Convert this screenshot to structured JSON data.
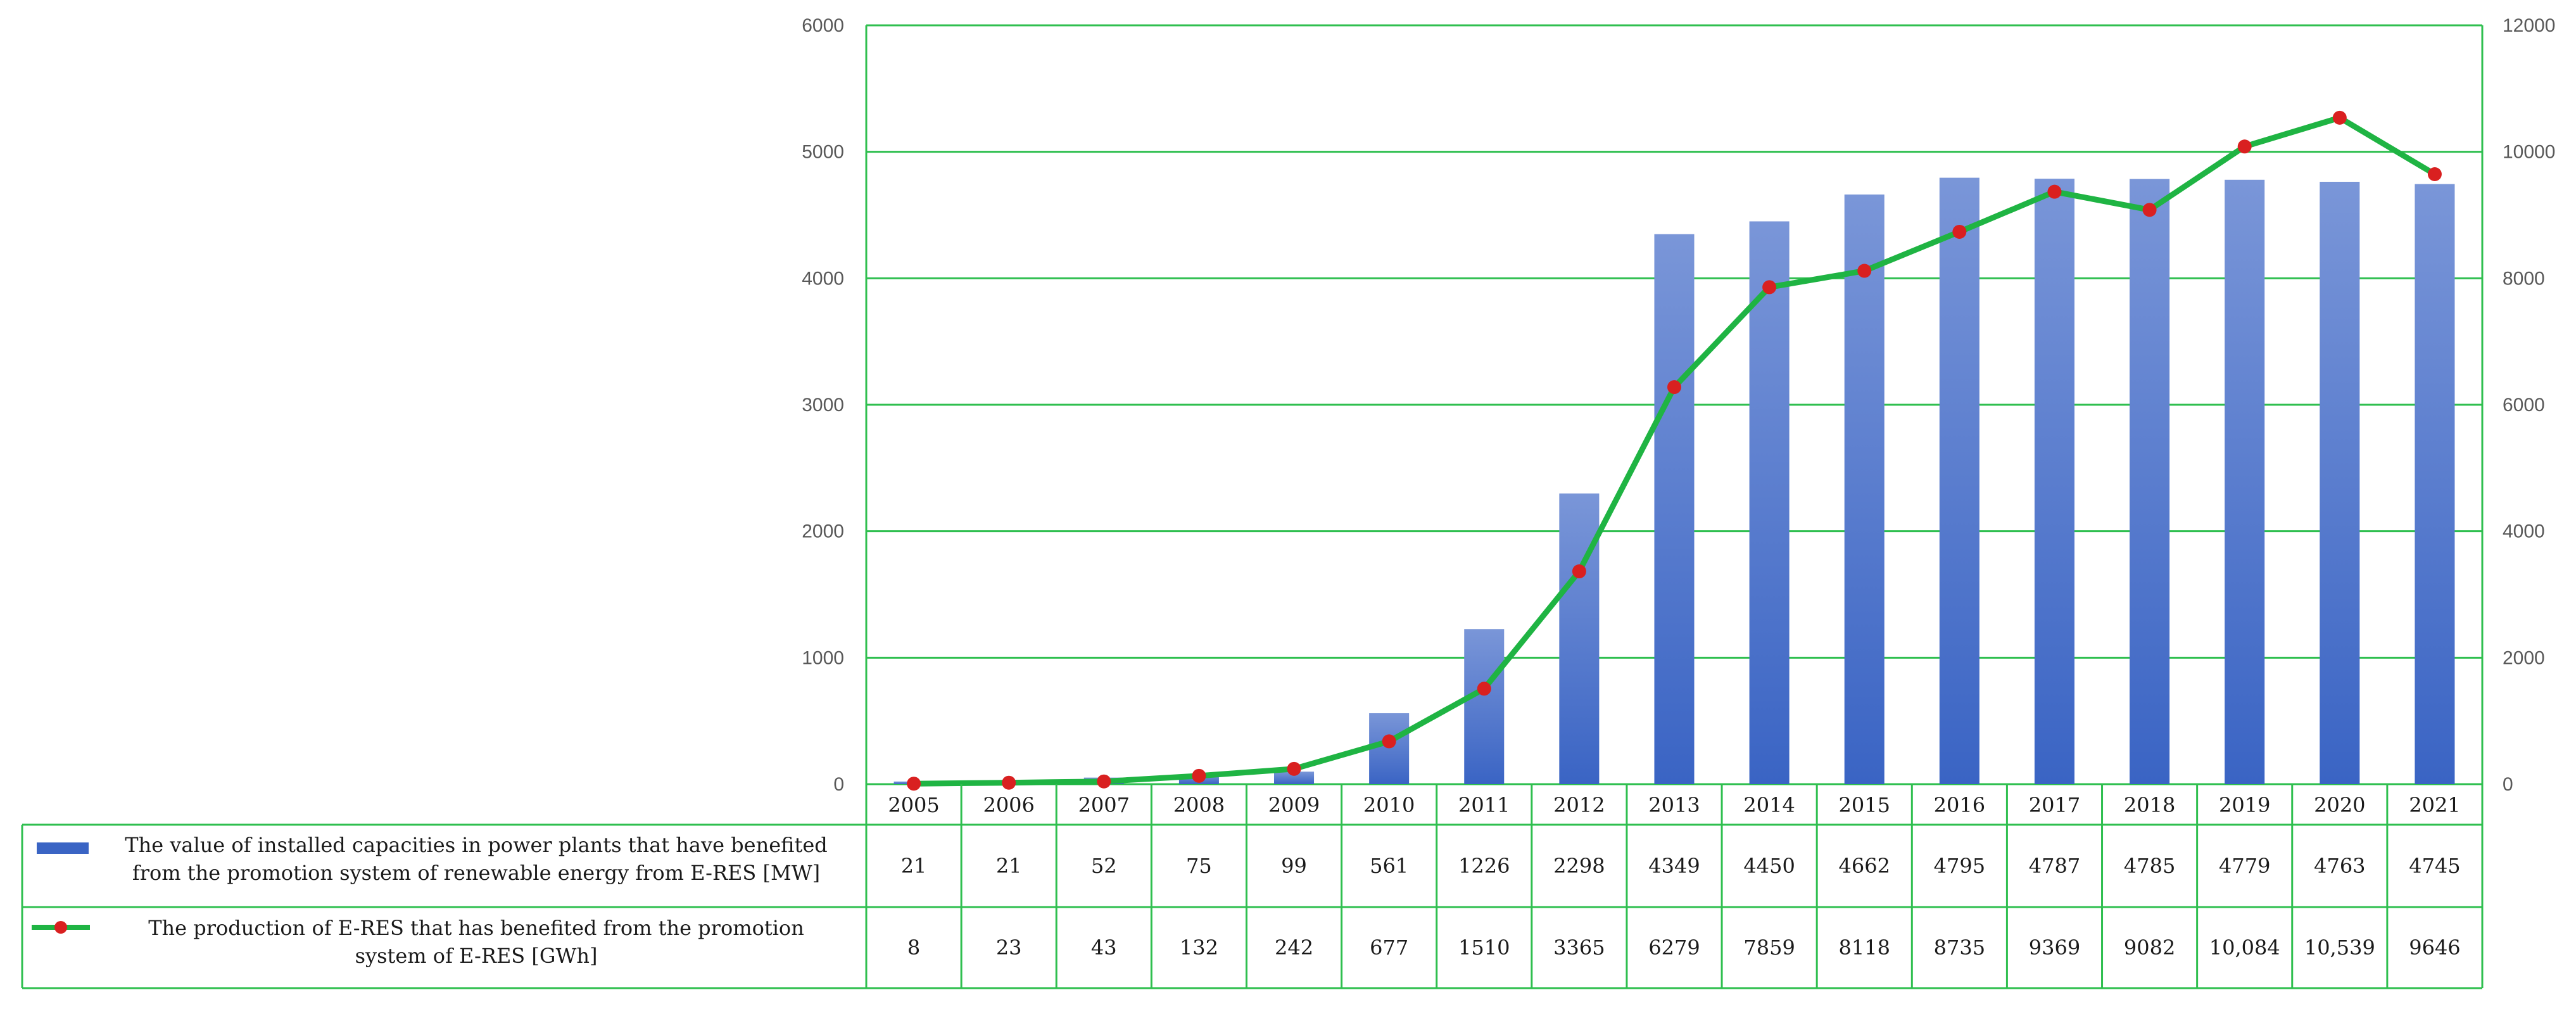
{
  "chart_data": {
    "type": "bar",
    "categories": [
      "2005",
      "2006",
      "2007",
      "2008",
      "2009",
      "2010",
      "2011",
      "2012",
      "2013",
      "2014",
      "2015",
      "2016",
      "2017",
      "2018",
      "2019",
      "2020",
      "2021"
    ],
    "series": [
      {
        "name_lines": [
          "The value of installed capacities in power plants that have benefited",
          "from the promotion system of renewable energy from E-RES [MW]"
        ],
        "type": "bar",
        "axis": "left",
        "values": [
          21,
          21,
          52,
          75,
          99,
          561,
          1226,
          2298,
          4349,
          4450,
          4662,
          4795,
          4787,
          4785,
          4779,
          4763,
          4745
        ],
        "value_labels": [
          "21",
          "21",
          "52",
          "75",
          "99",
          "561",
          "1226",
          "2298",
          "4349",
          "4450",
          "4662",
          "4795",
          "4787",
          "4785",
          "4779",
          "4763",
          "4745"
        ],
        "color_top": "#7a96d8",
        "color_bottom": "#3a64c4"
      },
      {
        "name_lines": [
          "The production of E-RES that has benefited from the promotion",
          "system of E-RES [GWh]"
        ],
        "type": "line",
        "axis": "right",
        "values": [
          8,
          23,
          43,
          132,
          242,
          677,
          1510,
          3365,
          6279,
          7859,
          8118,
          8735,
          9369,
          9082,
          10084,
          10539,
          9646
        ],
        "value_labels": [
          "8",
          "23",
          "43",
          "132",
          "242",
          "677",
          "1510",
          "3365",
          "6279",
          "7859",
          "8118",
          "8735",
          "9369",
          "9082",
          "10,084",
          "10,539",
          "9646"
        ],
        "line_color": "#1fb443",
        "marker_color": "#d92020"
      }
    ],
    "y_left": {
      "ylim": [
        0,
        6000
      ],
      "ticks": [
        "0",
        "1000",
        "2000",
        "3000",
        "4000",
        "5000",
        "6000"
      ]
    },
    "y_right": {
      "ylim": [
        0,
        12000
      ],
      "ticks": [
        "0",
        "2000",
        "4000",
        "6000",
        "8000",
        "10000",
        "12000"
      ]
    },
    "grid": true,
    "grid_color": "#2fbf4f",
    "legend_placement": "data-table-left"
  }
}
